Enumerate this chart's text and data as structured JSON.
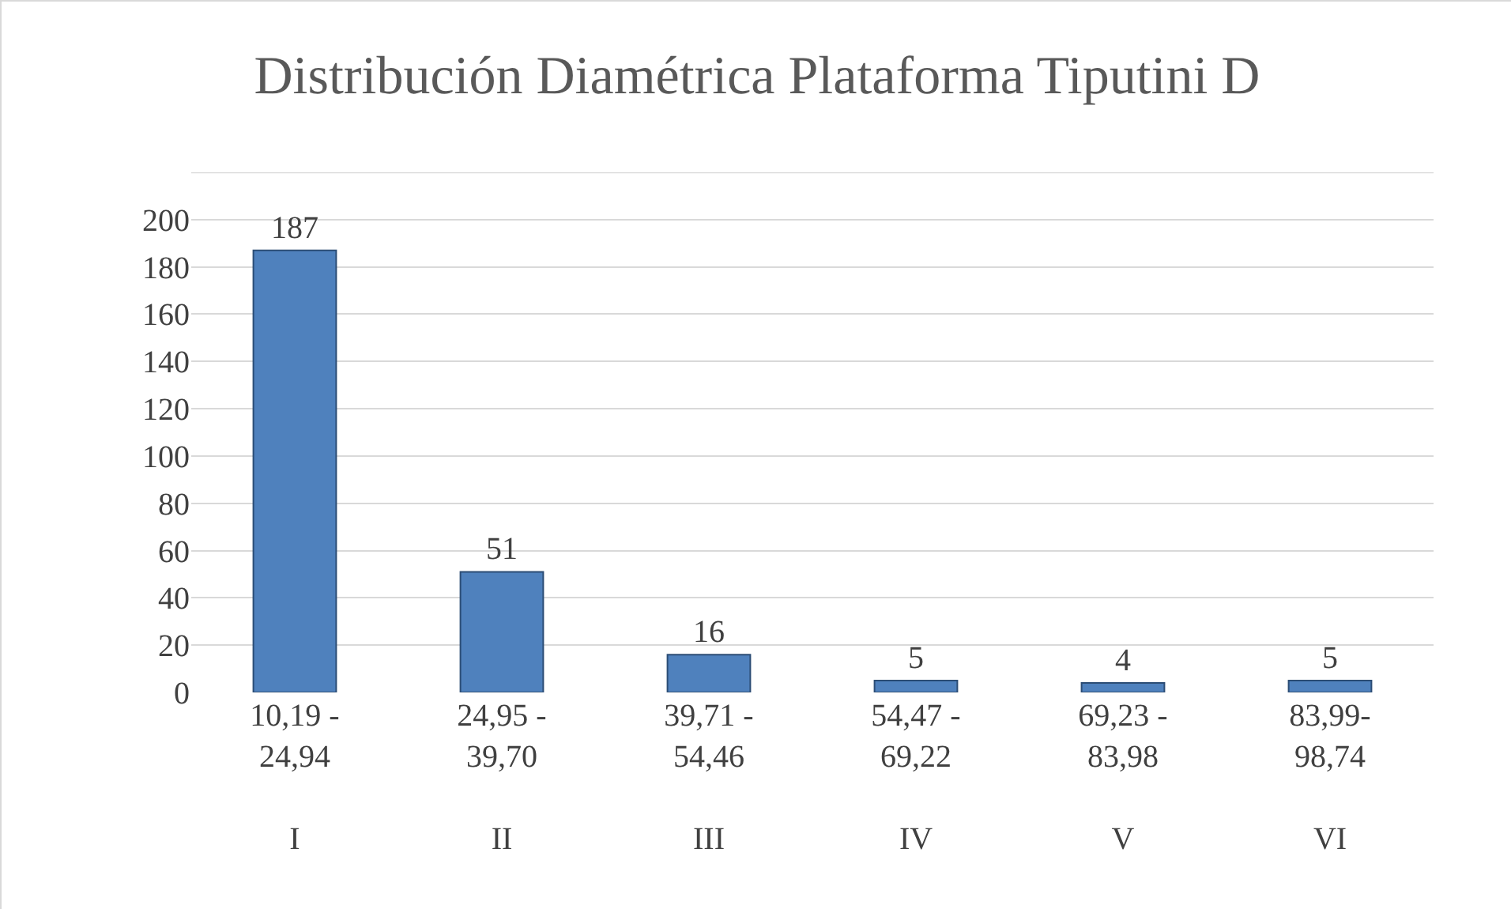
{
  "chart_data": {
    "type": "bar",
    "title": "Distribución Diamétrica Plataforma Tiputini D",
    "categories": [
      "10,19 -\n24,94\n\nI",
      "24,95 -\n39,70\n\nII",
      "39,71 -\n54,46\n\nIII",
      "54,47 -\n69,22\n\nIV",
      "69,23 -\n83,98\n\nV",
      "83,99-\n98,74\n\nVI"
    ],
    "values": [
      187,
      51,
      16,
      5,
      4,
      5
    ],
    "color": "#4f81bd",
    "ylim": [
      0,
      220
    ],
    "yticks": [
      0,
      20,
      40,
      60,
      80,
      100,
      120,
      140,
      160,
      180,
      200,
      {
        "value": 220,
        "label": null
      }
    ],
    "grid": "y",
    "legend": false,
    "data_labels": true
  }
}
